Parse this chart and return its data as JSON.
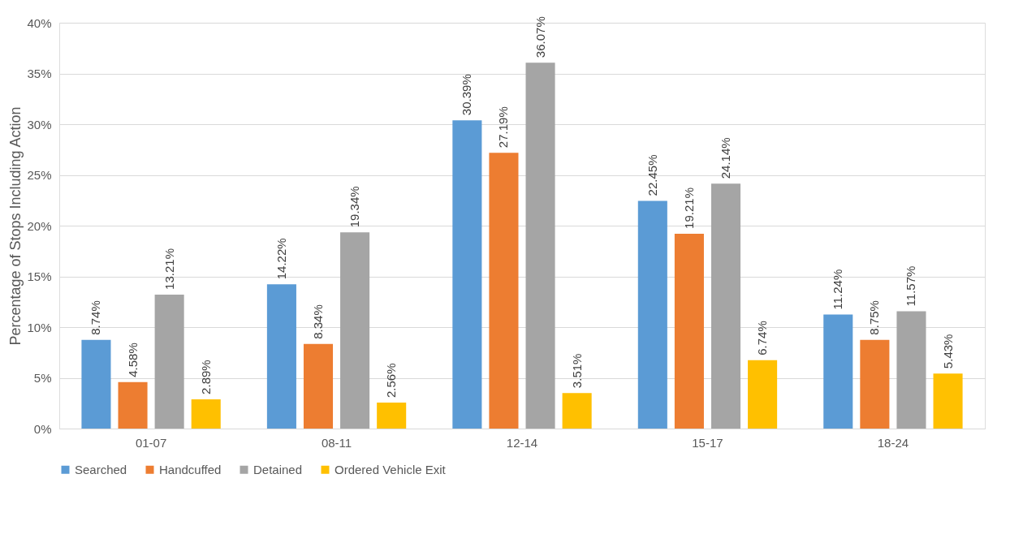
{
  "chart_data": {
    "type": "bar",
    "ylabel": "Percentage of Stops Including Action",
    "categories": [
      "01-07",
      "08-11",
      "12-14",
      "15-17",
      "18-24"
    ],
    "series": [
      {
        "name": "Searched",
        "color": "#5b9bd5",
        "values": [
          8.74,
          14.22,
          30.39,
          22.45,
          11.24
        ],
        "value_labels": [
          "8.74%",
          "14.22%",
          "30.39%",
          "22.45%",
          "11.24%"
        ]
      },
      {
        "name": "Handcuffed",
        "color": "#ed7d31",
        "values": [
          4.58,
          8.34,
          27.19,
          19.21,
          8.75
        ],
        "value_labels": [
          "4.58%",
          "8.34%",
          "27.19%",
          "19.21%",
          "8.75%"
        ]
      },
      {
        "name": "Detained",
        "color": "#a5a5a5",
        "values": [
          13.21,
          19.34,
          36.07,
          24.14,
          11.57
        ],
        "value_labels": [
          "13.21%",
          "19.34%",
          "36.07%",
          "24.14%",
          "11.57%"
        ]
      },
      {
        "name": "Ordered Vehicle Exit",
        "color": "#ffc000",
        "values": [
          2.89,
          2.56,
          3.51,
          6.74,
          5.43
        ],
        "value_labels": [
          "2.89%",
          "2.56%",
          "3.51%",
          "6.74%",
          "5.43%"
        ]
      }
    ],
    "ylim": [
      0,
      40
    ],
    "yticks": [
      {
        "value": 0,
        "label": "0%"
      },
      {
        "value": 5,
        "label": "5%"
      },
      {
        "value": 10,
        "label": "10%"
      },
      {
        "value": 15,
        "label": "15%"
      },
      {
        "value": 20,
        "label": "20%"
      },
      {
        "value": 25,
        "label": "25%"
      },
      {
        "value": 30,
        "label": "30%"
      },
      {
        "value": 35,
        "label": "35%"
      },
      {
        "value": 40,
        "label": "40%"
      }
    ],
    "grid": "y",
    "legend": "bottom"
  }
}
